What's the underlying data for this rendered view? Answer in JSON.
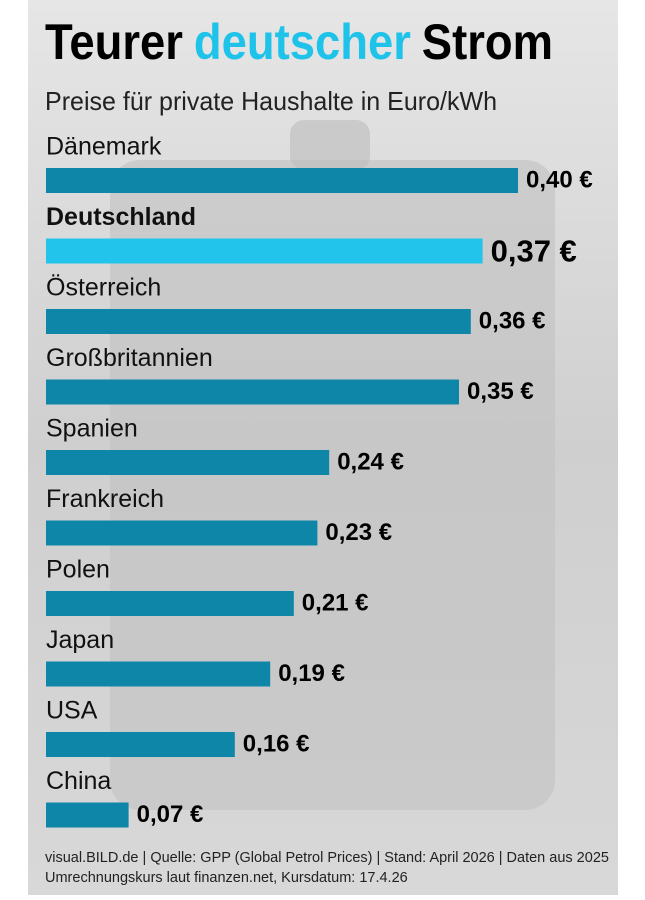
{
  "chart_data": {
    "type": "hbar",
    "title": [
      "Teurer",
      "deutscher",
      "Strom"
    ],
    "title_highlight_color": "#1fc3ea",
    "subtitle": "Preise für private Haushalte in Euro/kWh",
    "categories": [
      "Dänemark",
      "Deutschland",
      "Österreich",
      "Großbritannien",
      "Spanien",
      "Frankreich",
      "Polen",
      "Japan",
      "USA",
      "China"
    ],
    "values": [
      0.4,
      0.37,
      0.36,
      0.35,
      0.24,
      0.23,
      0.21,
      0.19,
      0.16,
      0.07
    ],
    "value_labels": [
      "0,40 €",
      "0,37 €",
      "0,36 €",
      "0,35 €",
      "0,24 €",
      "0,23 €",
      "0,21 €",
      "0,19 €",
      "0,16 €",
      "0,07 €"
    ],
    "color": "#0e86a8",
    "highlight_index": 1,
    "highlight_color": "#22c4ec",
    "footer": [
      "visual.BILD.de | Quelle: GPP (Global Petrol Prices) | Stand: April 2026 | Daten aus 2025",
      "Umrechnungskurs laut finanzen.net, Kursdatum: 17.4.26"
    ]
  }
}
